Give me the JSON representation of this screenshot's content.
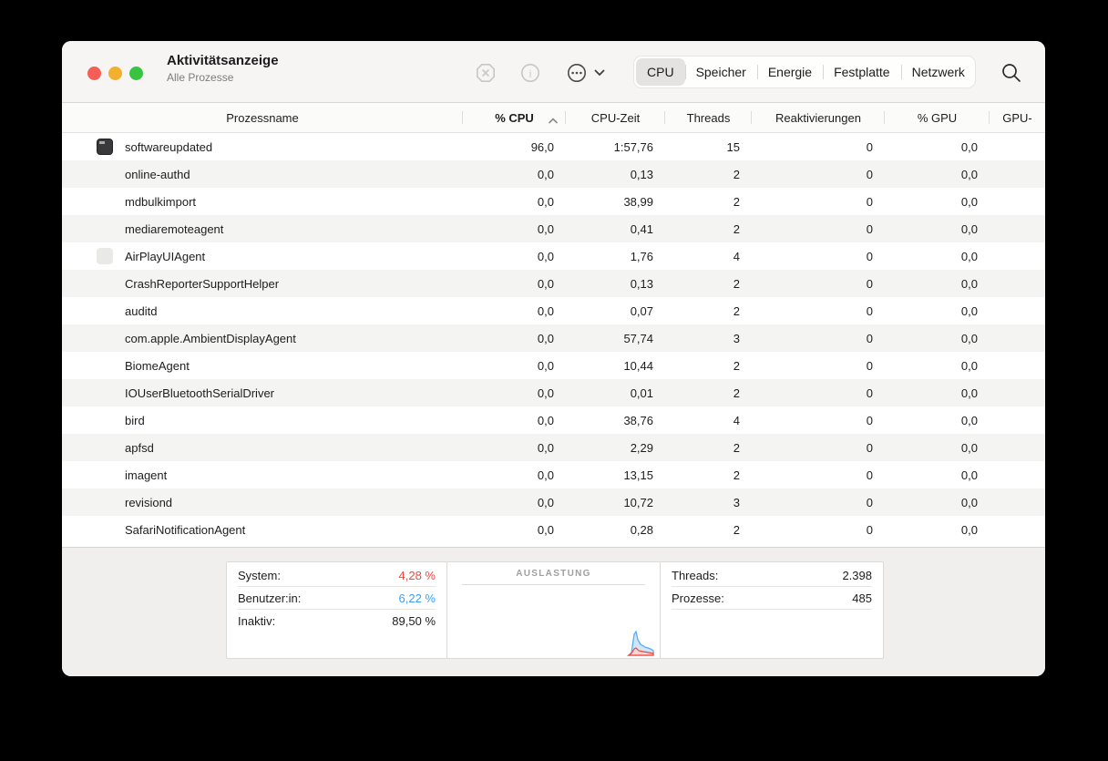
{
  "window": {
    "title": "Aktivitätsanzeige",
    "subtitle": "Alle Prozesse"
  },
  "toolbar": {
    "icons": [
      "stop-process-icon",
      "info-icon",
      "ellipsis-more-icon",
      "chevron-down-icon",
      "search-icon"
    ],
    "tabs": [
      "CPU",
      "Speicher",
      "Energie",
      "Festplatte",
      "Netzwerk"
    ],
    "selected_tab": "CPU"
  },
  "table": {
    "columns": [
      {
        "label": "Prozessname"
      },
      {
        "label": "% CPU",
        "sorted": "asc"
      },
      {
        "label": "CPU-Zeit"
      },
      {
        "label": "Threads"
      },
      {
        "label": "Reaktivierungen"
      },
      {
        "label": "% GPU"
      },
      {
        "label": "GPU-"
      }
    ],
    "rows": [
      {
        "icon": "terminal-app-icon",
        "name": "softwareupdated",
        "cpu": "96,0",
        "cpu_time": "1:57,76",
        "threads": "15",
        "wakeups": "0",
        "gpu": "0,0"
      },
      {
        "icon": "",
        "name": "online-authd",
        "cpu": "0,0",
        "cpu_time": "0,13",
        "threads": "2",
        "wakeups": "0",
        "gpu": "0,0"
      },
      {
        "icon": "",
        "name": "mdbulkimport",
        "cpu": "0,0",
        "cpu_time": "38,99",
        "threads": "2",
        "wakeups": "0",
        "gpu": "0,0"
      },
      {
        "icon": "",
        "name": "mediaremoteagent",
        "cpu": "0,0",
        "cpu_time": "0,41",
        "threads": "2",
        "wakeups": "0",
        "gpu": "0,0"
      },
      {
        "icon": "generic-app-icon",
        "name": "AirPlayUIAgent",
        "cpu": "0,0",
        "cpu_time": "1,76",
        "threads": "4",
        "wakeups": "0",
        "gpu": "0,0"
      },
      {
        "icon": "",
        "name": "CrashReporterSupportHelper",
        "cpu": "0,0",
        "cpu_time": "0,13",
        "threads": "2",
        "wakeups": "0",
        "gpu": "0,0"
      },
      {
        "icon": "",
        "name": "auditd",
        "cpu": "0,0",
        "cpu_time": "0,07",
        "threads": "2",
        "wakeups": "0",
        "gpu": "0,0"
      },
      {
        "icon": "",
        "name": "com.apple.AmbientDisplayAgent",
        "cpu": "0,0",
        "cpu_time": "57,74",
        "threads": "3",
        "wakeups": "0",
        "gpu": "0,0"
      },
      {
        "icon": "",
        "name": "BiomeAgent",
        "cpu": "0,0",
        "cpu_time": "10,44",
        "threads": "2",
        "wakeups": "0",
        "gpu": "0,0"
      },
      {
        "icon": "",
        "name": "IOUserBluetoothSerialDriver",
        "cpu": "0,0",
        "cpu_time": "0,01",
        "threads": "2",
        "wakeups": "0",
        "gpu": "0,0"
      },
      {
        "icon": "",
        "name": "bird",
        "cpu": "0,0",
        "cpu_time": "38,76",
        "threads": "4",
        "wakeups": "0",
        "gpu": "0,0"
      },
      {
        "icon": "",
        "name": "apfsd",
        "cpu": "0,0",
        "cpu_time": "2,29",
        "threads": "2",
        "wakeups": "0",
        "gpu": "0,0"
      },
      {
        "icon": "",
        "name": "imagent",
        "cpu": "0,0",
        "cpu_time": "13,15",
        "threads": "2",
        "wakeups": "0",
        "gpu": "0,0"
      },
      {
        "icon": "",
        "name": "revisiond",
        "cpu": "0,0",
        "cpu_time": "10,72",
        "threads": "3",
        "wakeups": "0",
        "gpu": "0,0"
      },
      {
        "icon": "",
        "name": "SafariNotificationAgent",
        "cpu": "0,0",
        "cpu_time": "0,28",
        "threads": "2",
        "wakeups": "0",
        "gpu": "0,0"
      }
    ]
  },
  "footer": {
    "cpu_load": {
      "system_label": "System:",
      "system_value": "4,28 %",
      "user_label": "Benutzer:in:",
      "user_value": "6,22 %",
      "idle_label": "Inaktiv:",
      "idle_value": "89,50 %"
    },
    "usage": {
      "title": "AUSLASTUNG"
    },
    "stats": {
      "threads_label": "Threads:",
      "threads_value": "2.398",
      "processes_label": "Prozesse:",
      "processes_value": "485"
    }
  },
  "colors": {
    "system_red": "#fb423a",
    "user_blue": "#3b9ff5",
    "selected_tab_bg": "#e4e3e1",
    "traffic_red": "#f35e56",
    "traffic_yellow": "#f2b02e",
    "traffic_green": "#38c440"
  }
}
